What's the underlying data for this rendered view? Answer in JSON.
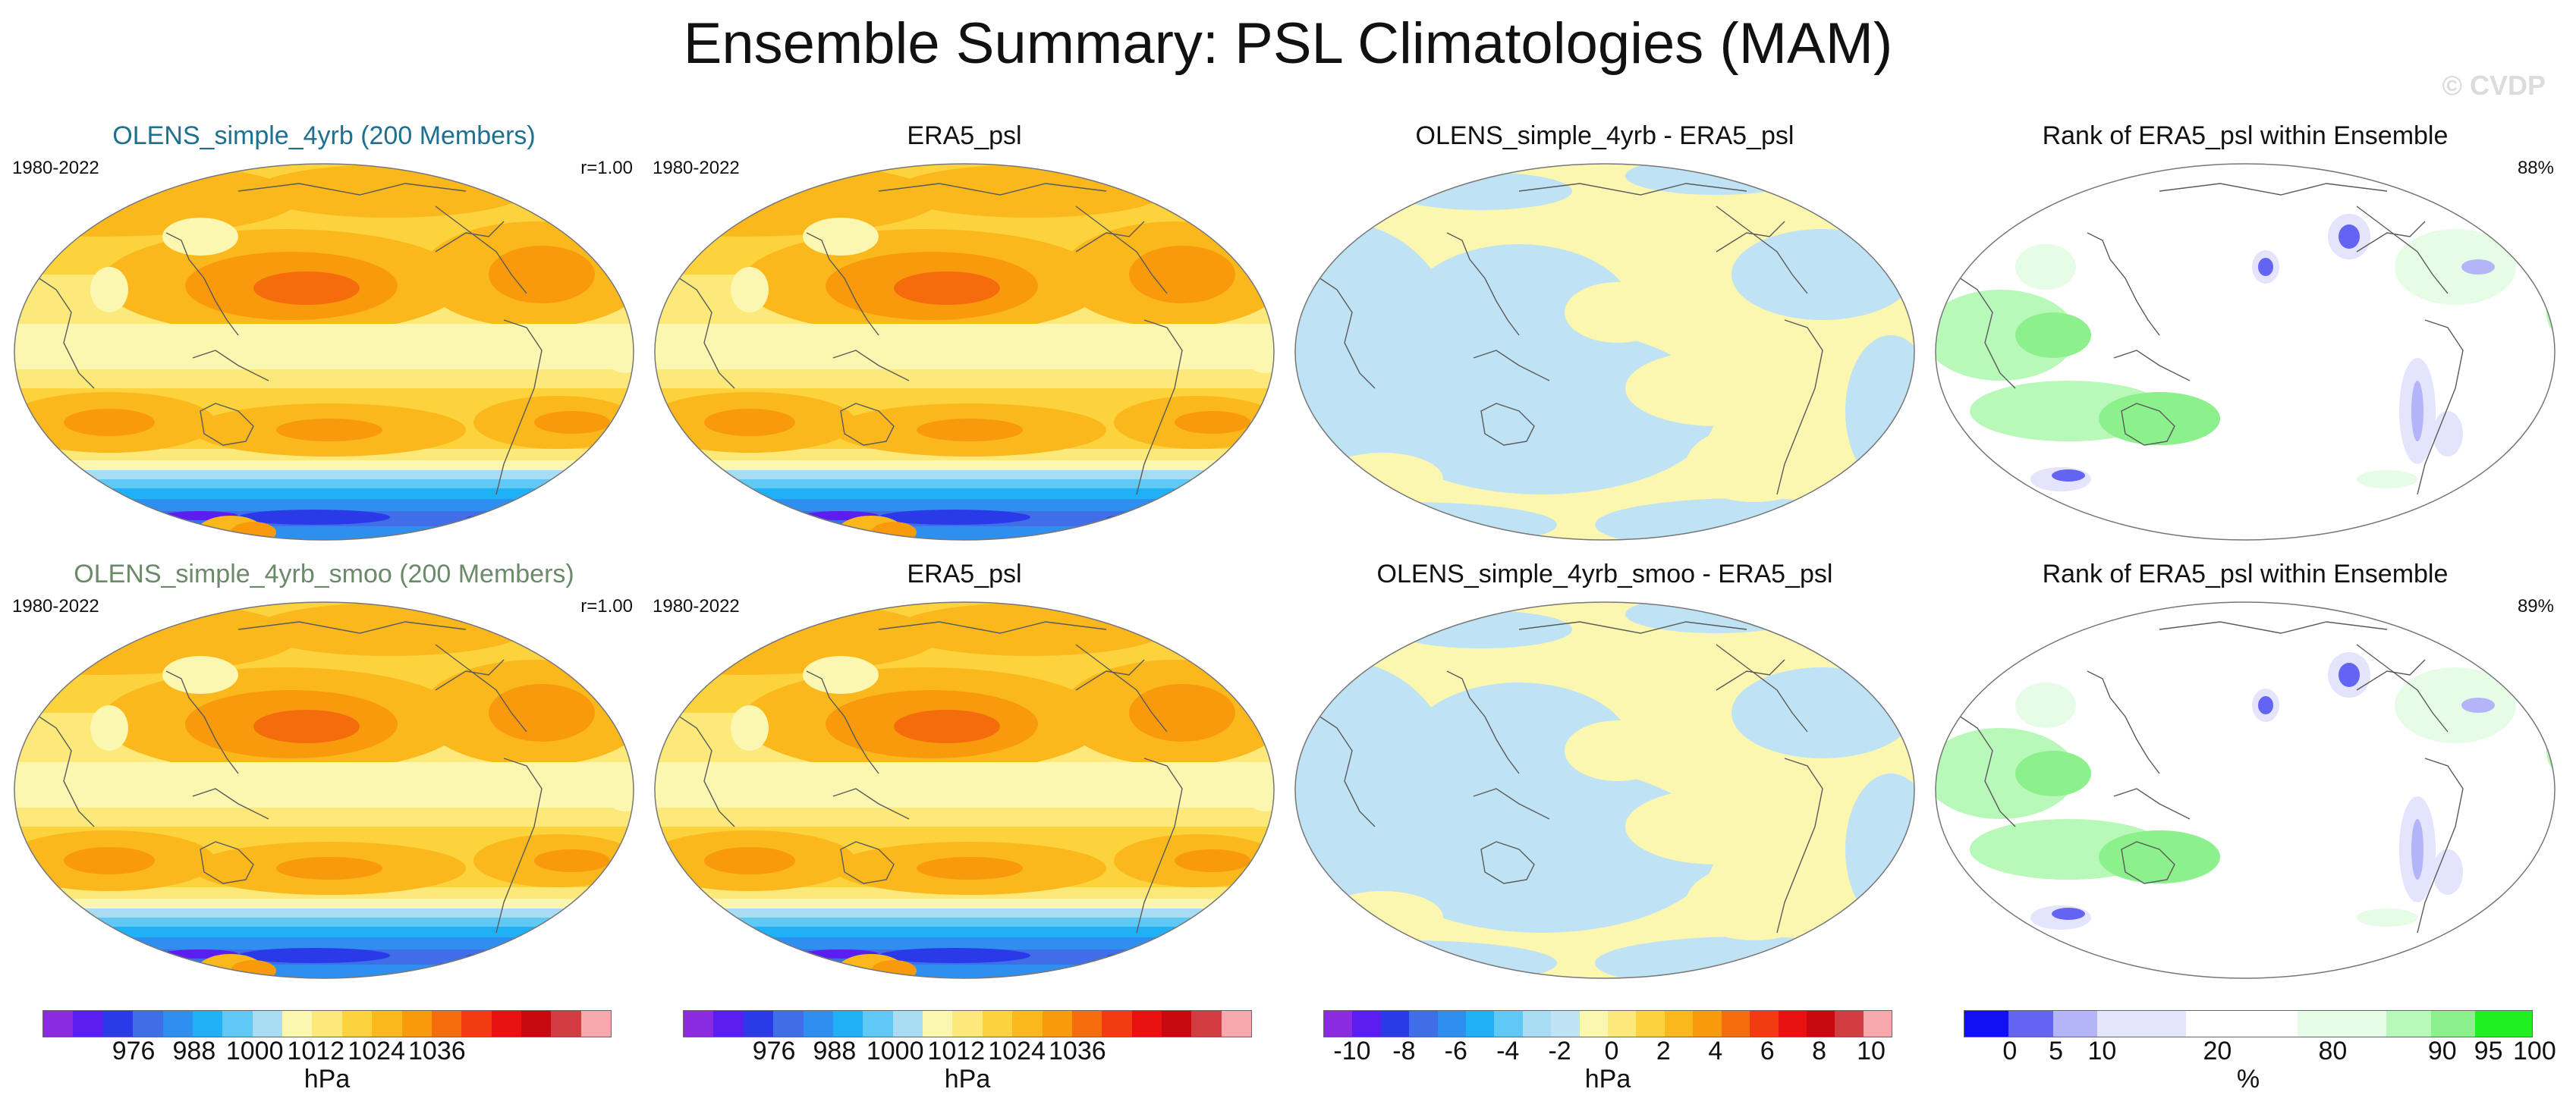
{
  "figure": {
    "title": "Ensemble Summary: PSL Climatologies (MAM)",
    "watermark": "© CVDP"
  },
  "colors": {
    "psl": [
      "#8a2be2",
      "#5a1ff0",
      "#2a3ae8",
      "#3f6ee8",
      "#2f8ff0",
      "#1fb0f5",
      "#60c8f5",
      "#a8dcf2",
      "#fbf6b0",
      "#fce97a",
      "#fcd33c",
      "#fbb81c",
      "#f89a0c",
      "#f56c0c",
      "#f23b10",
      "#e81010",
      "#c80a10",
      "#d23c40",
      "#f6a8ac"
    ],
    "diff": [
      "#8a2be2",
      "#5a1ff0",
      "#2a3ae8",
      "#3f6ee8",
      "#2f8ff0",
      "#1fb0f5",
      "#60c8f5",
      "#a8dcf2",
      "#bfe3f4",
      "#fbf6b0",
      "#fce97a",
      "#fcd33c",
      "#fbb81c",
      "#f89a0c",
      "#f56c0c",
      "#f23b10",
      "#e81010",
      "#c80a10",
      "#d23c40",
      "#f6a8ac"
    ],
    "rank": [
      "#1010f2",
      "#6464f2",
      "#b4b4f8",
      "#e4e4fc",
      "#ffffff",
      "#e6fce6",
      "#b8f8b8",
      "#8cf08c",
      "#20f020"
    ]
  },
  "rows": [
    {
      "panels": [
        {
          "title": "OLENS_simple_4yrb (200 Members)",
          "title_color": "#1e7090",
          "left": "1980-2022",
          "right": "r=1.00",
          "type": "psl"
        },
        {
          "title": "ERA5_psl",
          "title_color": "#111111",
          "left": "1980-2022",
          "right": "",
          "type": "psl"
        },
        {
          "title": "OLENS_simple_4yrb - ERA5_psl",
          "title_color": "#111111",
          "left": "",
          "right": "",
          "type": "diff"
        },
        {
          "title": "Rank of ERA5_psl within Ensemble",
          "title_color": "#111111",
          "left": "",
          "right": "88%",
          "type": "rank"
        }
      ]
    },
    {
      "panels": [
        {
          "title": "OLENS_simple_4yrb_smoo (200 Members)",
          "title_color": "#6a8a6a",
          "left": "1980-2022",
          "right": "r=1.00",
          "type": "psl"
        },
        {
          "title": "ERA5_psl",
          "title_color": "#111111",
          "left": "1980-2022",
          "right": "",
          "type": "psl"
        },
        {
          "title": "OLENS_simple_4yrb_smoo - ERA5_psl",
          "title_color": "#111111",
          "left": "",
          "right": "",
          "type": "diff"
        },
        {
          "title": "Rank of ERA5_psl within Ensemble",
          "title_color": "#111111",
          "left": "",
          "right": "89%",
          "type": "rank"
        }
      ]
    }
  ],
  "colorbars": [
    {
      "unit": "hPa",
      "ticks": [
        "976",
        "988",
        "1000",
        "1012",
        "1024",
        "1036"
      ]
    },
    {
      "unit": "hPa",
      "ticks": [
        "976",
        "988",
        "1000",
        "1012",
        "1024",
        "1036"
      ]
    },
    {
      "unit": "hPa",
      "ticks": [
        "-10",
        "-8",
        "-6",
        "-4",
        "-2",
        "0",
        "2",
        "4",
        "6",
        "8",
        "10"
      ]
    },
    {
      "unit": "%",
      "ticks": [
        "0",
        "5",
        "10",
        "20",
        "80",
        "90",
        "95",
        "100"
      ]
    }
  ],
  "chart_data": [
    {
      "type": "heatmap",
      "title": "OLENS_simple_4yrb (200 Members)",
      "period": "1980-2022",
      "pattern_correlation": 1.0,
      "variable": "PSL",
      "units": "hPa",
      "color_levels": [
        970,
        976,
        982,
        988,
        994,
        1000,
        1006,
        1012,
        1018,
        1024,
        1030,
        1036
      ]
    },
    {
      "type": "heatmap",
      "title": "ERA5_psl",
      "period": "1980-2022",
      "units": "hPa",
      "color_levels": [
        970,
        976,
        982,
        988,
        994,
        1000,
        1006,
        1012,
        1018,
        1024,
        1030,
        1036
      ]
    },
    {
      "type": "heatmap",
      "title": "OLENS_simple_4yrb - ERA5_psl",
      "units": "hPa",
      "color_levels": [
        -10,
        -8,
        -6,
        -4,
        -2,
        0,
        2,
        4,
        6,
        8,
        10
      ]
    },
    {
      "type": "heatmap",
      "title": "Rank of ERA5_psl within Ensemble",
      "percent_within": 88,
      "units": "%",
      "color_levels": [
        0,
        5,
        10,
        20,
        80,
        90,
        95,
        100
      ]
    },
    {
      "type": "heatmap",
      "title": "OLENS_simple_4yrb_smoo (200 Members)",
      "period": "1980-2022",
      "pattern_correlation": 1.0,
      "units": "hPa",
      "color_levels": [
        970,
        976,
        982,
        988,
        994,
        1000,
        1006,
        1012,
        1018,
        1024,
        1030,
        1036
      ]
    },
    {
      "type": "heatmap",
      "title": "ERA5_psl",
      "period": "1980-2022",
      "units": "hPa",
      "color_levels": [
        970,
        976,
        982,
        988,
        994,
        1000,
        1006,
        1012,
        1018,
        1024,
        1030,
        1036
      ]
    },
    {
      "type": "heatmap",
      "title": "OLENS_simple_4yrb_smoo - ERA5_psl",
      "units": "hPa",
      "color_levels": [
        -10,
        -8,
        -6,
        -4,
        -2,
        0,
        2,
        4,
        6,
        8,
        10
      ]
    },
    {
      "type": "heatmap",
      "title": "Rank of ERA5_psl within Ensemble",
      "percent_within": 89,
      "units": "%",
      "color_levels": [
        0,
        5,
        10,
        20,
        80,
        90,
        95,
        100
      ]
    }
  ]
}
